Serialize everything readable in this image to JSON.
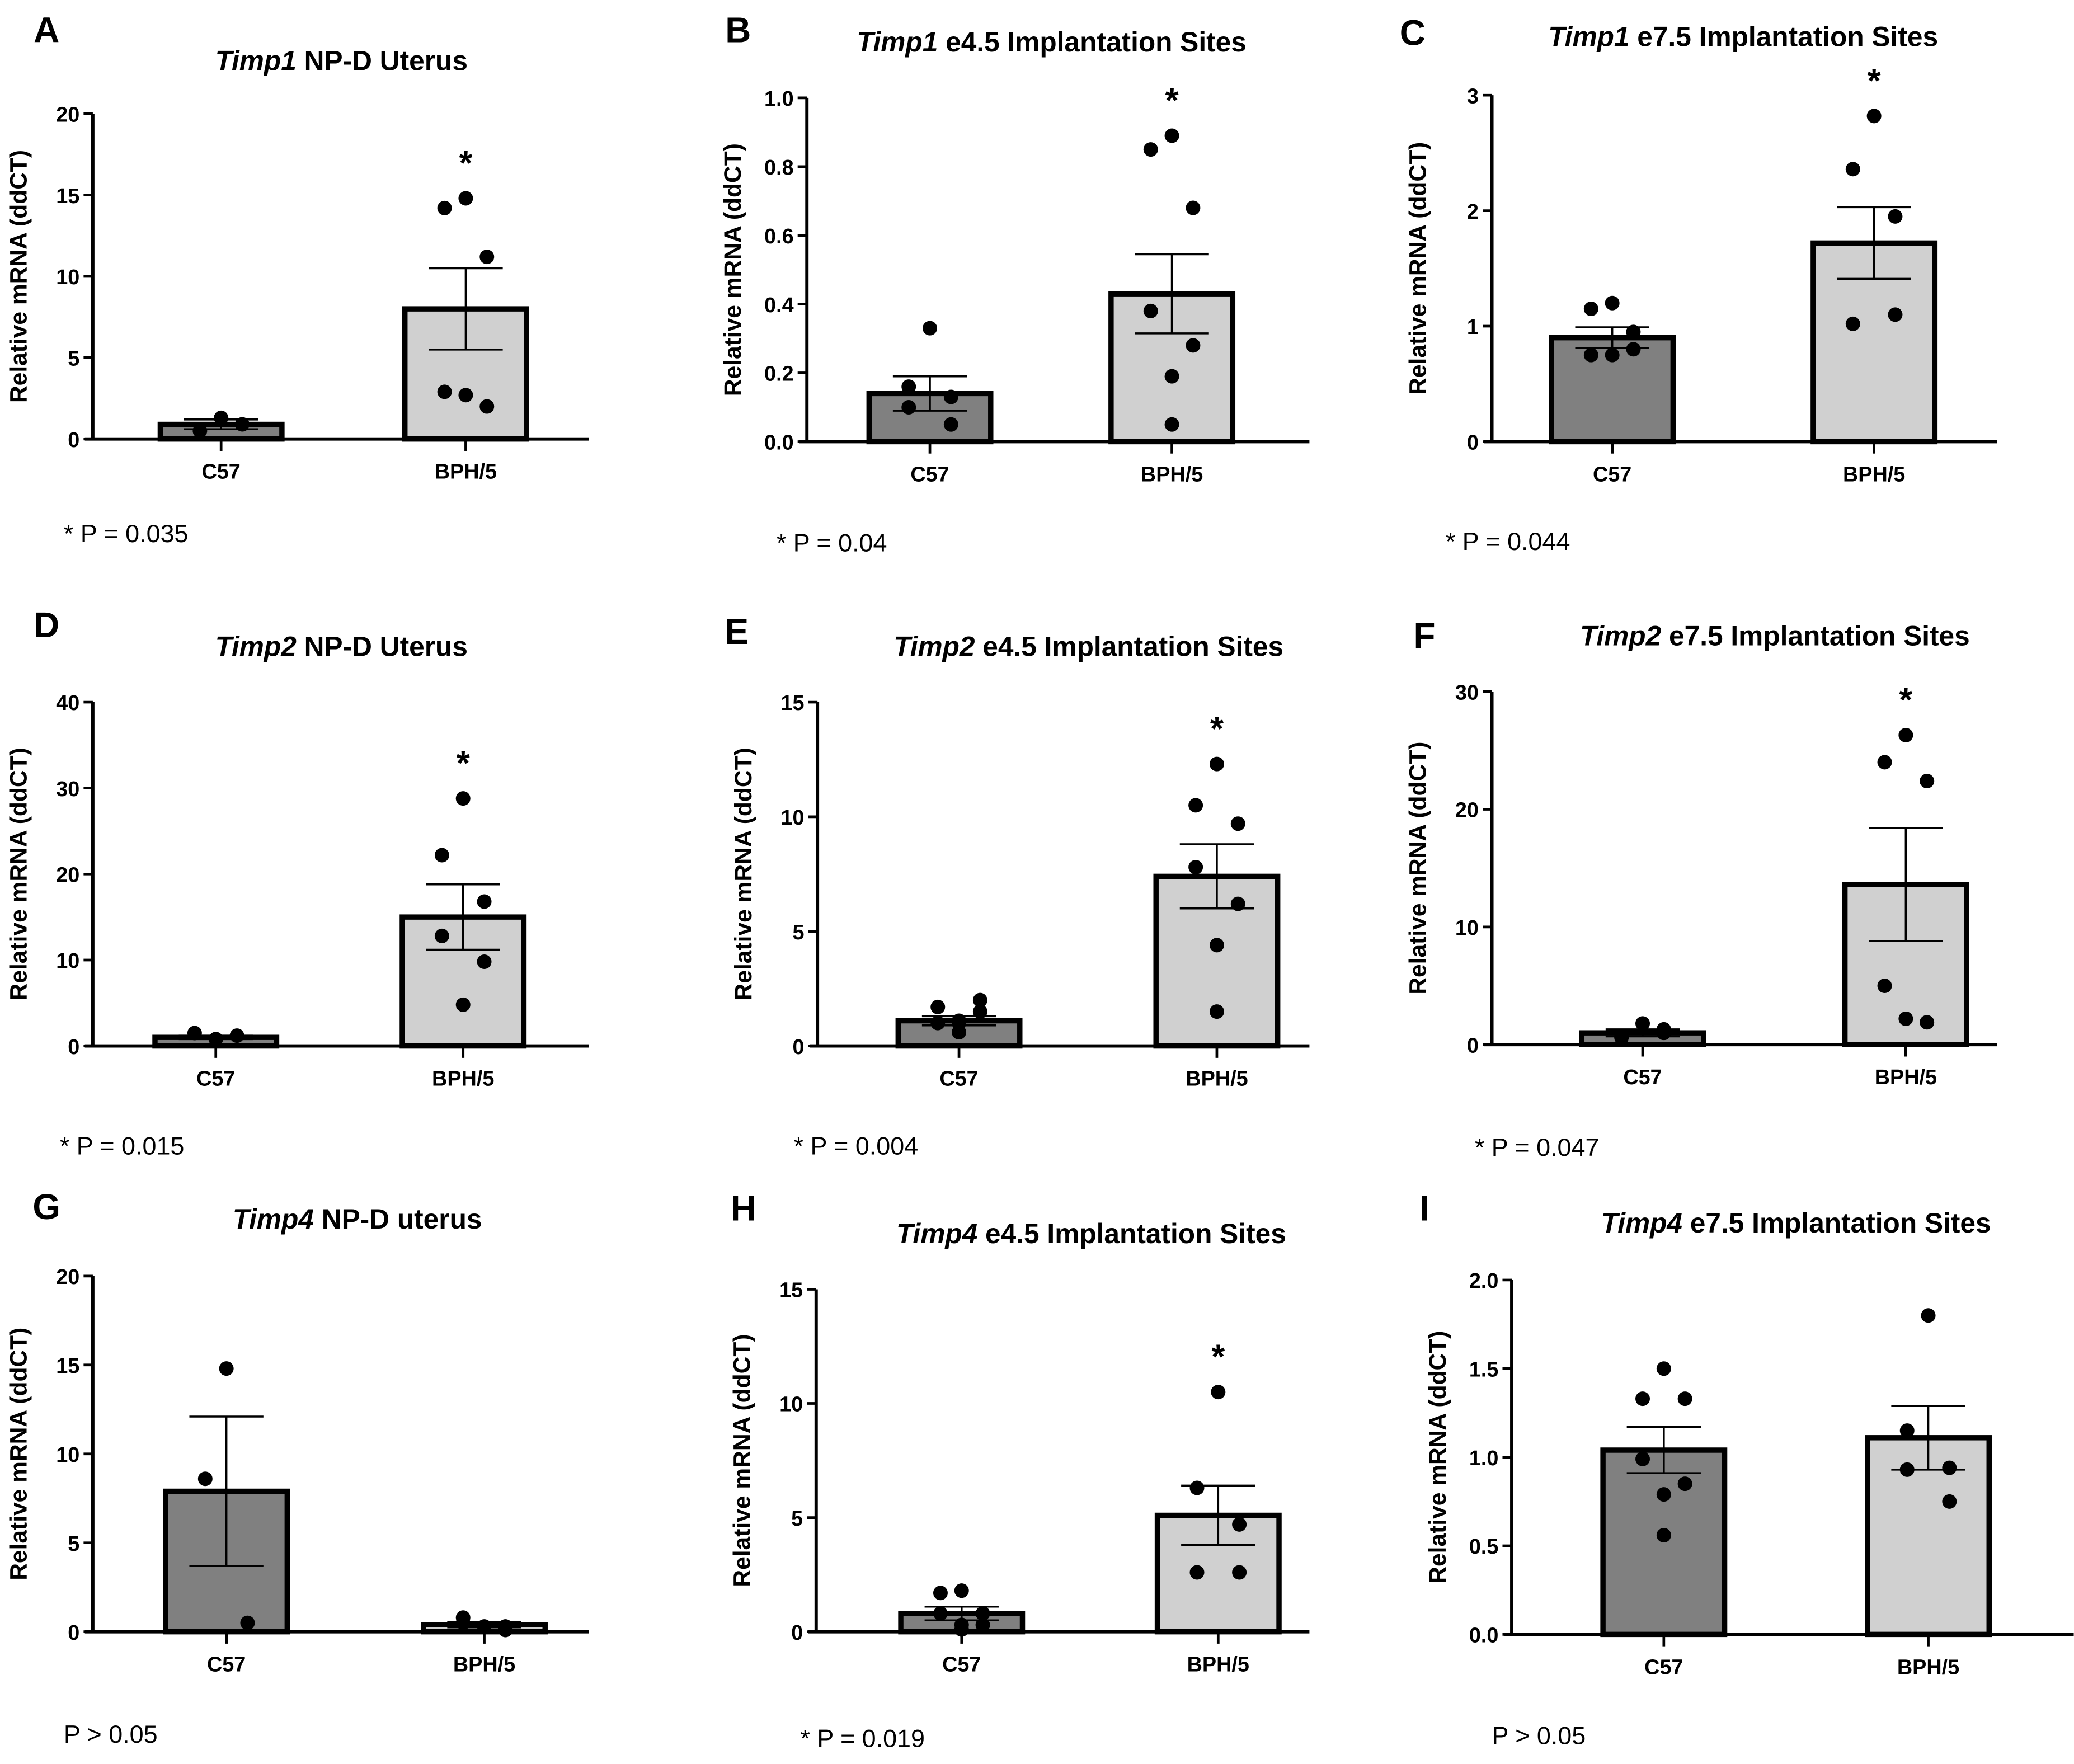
{
  "chart_data": [
    {
      "panel": "A",
      "type": "bar",
      "title_gene": "Timp1",
      "title_rest": " NP-D Uterus",
      "ylabel": "Relative mRNA (ddCT)",
      "ylim": [
        0,
        20
      ],
      "yticks": [
        "0",
        "5",
        "10",
        "15",
        "20"
      ],
      "categories": [
        "C57",
        "BPH/5"
      ],
      "series": [
        {
          "name": "C57",
          "mean": 0.9,
          "sem": 0.3,
          "points": [
            1.3,
            0.5,
            0.9
          ]
        },
        {
          "name": "BPH/5",
          "mean": 8.0,
          "sem": 2.5,
          "points": [
            14.8,
            14.2,
            11.2,
            2.9,
            2.0,
            2.7
          ]
        }
      ],
      "significance": "*",
      "p_text": "* P = 0.035"
    },
    {
      "panel": "B",
      "type": "bar",
      "title_gene": "Timp1",
      "title_rest": " e4.5 Implantation Sites",
      "ylabel": "Relative mRNA (ddCT)",
      "ylim": [
        0,
        1.0
      ],
      "yticks": [
        "0.0",
        "0.2",
        "0.4",
        "0.6",
        "0.8",
        "1.0"
      ],
      "categories": [
        "C57",
        "BPH/5"
      ],
      "series": [
        {
          "name": "C57",
          "mean": 0.14,
          "sem": 0.05,
          "points": [
            0.33,
            0.16,
            0.13,
            0.1,
            0.05
          ]
        },
        {
          "name": "BPH/5",
          "mean": 0.43,
          "sem": 0.115,
          "points": [
            0.89,
            0.85,
            0.68,
            0.38,
            0.28,
            0.19,
            0.05
          ]
        }
      ],
      "significance": "*",
      "p_text": "* P = 0.04"
    },
    {
      "panel": "C",
      "type": "bar",
      "title_gene": "Timp1",
      "title_rest": " e7.5 Implantation Sites",
      "ylabel": "Relative mRNA (ddCT)",
      "ylim": [
        0,
        3
      ],
      "yticks": [
        "0",
        "1",
        "2",
        "3"
      ],
      "categories": [
        "C57",
        "BPH/5"
      ],
      "series": [
        {
          "name": "C57",
          "mean": 0.9,
          "sem": 0.09,
          "points": [
            1.2,
            1.15,
            0.95,
            0.75,
            0.8,
            0.75
          ]
        },
        {
          "name": "BPH/5",
          "mean": 1.72,
          "sem": 0.31,
          "points": [
            2.82,
            2.36,
            1.95,
            1.02,
            1.1
          ]
        }
      ],
      "significance": "*",
      "p_text": "* P = 0.044"
    },
    {
      "panel": "D",
      "type": "bar",
      "title_gene": "Timp2",
      "title_rest": " NP-D Uterus",
      "ylabel": "Relative mRNA (ddCT)",
      "ylim": [
        0,
        40
      ],
      "yticks": [
        "0",
        "10",
        "20",
        "30",
        "40"
      ],
      "categories": [
        "C57",
        "BPH/5"
      ],
      "series": [
        {
          "name": "C57",
          "mean": 1.0,
          "sem": 0.2,
          "points": [
            0.8,
            1.5,
            1.2
          ]
        },
        {
          "name": "BPH/5",
          "mean": 15.0,
          "sem": 3.8,
          "points": [
            28.8,
            22.2,
            16.8,
            12.8,
            9.8,
            4.8
          ]
        }
      ],
      "significance": "*",
      "p_text": "* P = 0.015"
    },
    {
      "panel": "E",
      "type": "bar",
      "title_gene": "Timp2",
      "title_rest": " e4.5 Implantation Sites",
      "ylabel": "Relative mRNA (ddCT)",
      "ylim": [
        0,
        15
      ],
      "yticks": [
        "0",
        "5",
        "10",
        "15"
      ],
      "categories": [
        "C57",
        "BPH/5"
      ],
      "series": [
        {
          "name": "C57",
          "mean": 1.1,
          "sem": 0.2,
          "points": [
            0.6,
            1.0,
            1.5,
            1.7,
            2.0,
            1.0,
            1.1
          ]
        },
        {
          "name": "BPH/5",
          "mean": 7.4,
          "sem": 1.4,
          "points": [
            12.3,
            10.5,
            9.7,
            7.8,
            6.2,
            4.4,
            1.5
          ]
        }
      ],
      "significance": "*",
      "p_text": "* P = 0.004"
    },
    {
      "panel": "F",
      "type": "bar",
      "title_gene": "Timp2",
      "title_rest": " e7.5 Implantation Sites",
      "ylabel": "Relative mRNA (ddCT)",
      "ylim": [
        0,
        30
      ],
      "yticks": [
        "0",
        "10",
        "20",
        "30"
      ],
      "categories": [
        "C57",
        "BPH/5"
      ],
      "series": [
        {
          "name": "C57",
          "mean": 1.0,
          "sem": 0.3,
          "points": [
            1.8,
            0.6,
            1.3,
            0.7,
            1.0
          ]
        },
        {
          "name": "BPH/5",
          "mean": 13.6,
          "sem": 4.8,
          "points": [
            26.3,
            24.0,
            22.4,
            5.0,
            1.9,
            2.2
          ]
        }
      ],
      "significance": "*",
      "p_text": "* P = 0.047"
    },
    {
      "panel": "G",
      "type": "bar",
      "title_gene": "Timp4",
      "title_rest": " NP-D uterus",
      "ylabel": "Relative mRNA (ddCT)",
      "ylim": [
        0,
        20
      ],
      "yticks": [
        "0",
        "5",
        "10",
        "15",
        "20"
      ],
      "categories": [
        "C57",
        "BPH/5"
      ],
      "series": [
        {
          "name": "C57",
          "mean": 7.9,
          "sem": 4.2,
          "points": [
            14.8,
            8.6,
            0.5
          ]
        },
        {
          "name": "BPH/5",
          "mean": 0.4,
          "sem": 0.15,
          "points": [
            0.3,
            0.8,
            0.3,
            0.5,
            0.1
          ]
        }
      ],
      "significance": "",
      "p_text": "P > 0.05"
    },
    {
      "panel": "H",
      "type": "bar",
      "title_gene": "Timp4",
      "title_rest": " e4.5 Implantation Sites",
      "ylabel": "Relative mRNA (ddCT)",
      "ylim": [
        0,
        15
      ],
      "yticks": [
        "0",
        "5",
        "10",
        "15"
      ],
      "categories": [
        "C57",
        "BPH/5"
      ],
      "series": [
        {
          "name": "C57",
          "mean": 0.8,
          "sem": 0.3,
          "points": [
            1.8,
            1.7,
            0.3,
            0.8,
            0.8,
            0.3,
            0.1
          ]
        },
        {
          "name": "BPH/5",
          "mean": 5.1,
          "sem": 1.3,
          "points": [
            10.5,
            6.3,
            4.7,
            2.6,
            2.6
          ]
        }
      ],
      "significance": "*",
      "p_text": "* P = 0.019"
    },
    {
      "panel": "I",
      "type": "bar",
      "title_gene": "Timp4",
      "title_rest": " e7.5 Implantation Sites",
      "ylabel": "Relative mRNA (ddCT)",
      "ylim": [
        0,
        2.0
      ],
      "yticks": [
        "0.0",
        "0.5",
        "1.0",
        "1.5",
        "2.0"
      ],
      "categories": [
        "C57",
        "BPH/5"
      ],
      "series": [
        {
          "name": "C57",
          "mean": 1.04,
          "sem": 0.13,
          "points": [
            1.5,
            1.33,
            1.33,
            0.99,
            0.85,
            0.79,
            0.56
          ]
        },
        {
          "name": "BPH/5",
          "mean": 1.11,
          "sem": 0.18,
          "points": [
            1.8,
            1.15,
            0.94,
            0.93,
            0.75
          ]
        }
      ],
      "significance": "",
      "p_text": "P > 0.05"
    }
  ],
  "colors": {
    "C57": "#808080",
    "BPH/5": "#d0d0d0",
    "axis": "#000000",
    "point": "#000000"
  }
}
